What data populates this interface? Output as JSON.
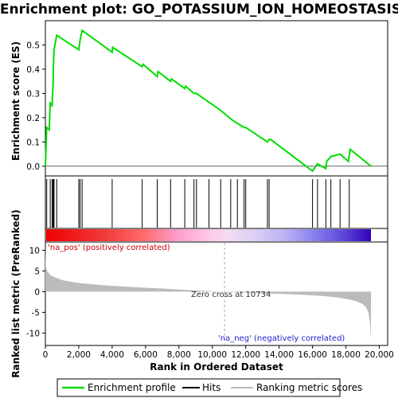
{
  "title": "Enrichment plot: GO_POTASSIUM_ION_HOMEOSTASIS",
  "colors": {
    "profile": "#00dd00",
    "hits": "#000000",
    "metric": "#bbbbbb",
    "pos_label": "#cc0000",
    "neg_label": "#2222cc",
    "zero_line": "#aaaaaa"
  },
  "chart_data": [
    {
      "type": "line",
      "name": "enrichment-profile",
      "ylabel": "Enrichment score (ES)",
      "xlim": [
        0,
        20500
      ],
      "ylim": [
        -0.04,
        0.6
      ],
      "yticks": [
        0.0,
        0.1,
        0.2,
        0.3,
        0.4,
        0.5
      ],
      "grid": false,
      "x": [
        0,
        80,
        230,
        290,
        400,
        460,
        480,
        520,
        680,
        2000,
        2080,
        2200,
        4000,
        4030,
        5800,
        5850,
        6700,
        6750,
        7500,
        7550,
        8350,
        8400,
        8900,
        8950,
        9050,
        10500,
        11200,
        11900,
        12000,
        13300,
        13400,
        13500,
        16000,
        16100,
        16300,
        16800,
        16850,
        17100,
        17650,
        18150,
        18250,
        19500
      ],
      "y": [
        0.0,
        0.16,
        0.15,
        0.26,
        0.25,
        0.33,
        0.41,
        0.48,
        0.54,
        0.48,
        0.52,
        0.56,
        0.47,
        0.49,
        0.41,
        0.42,
        0.37,
        0.39,
        0.35,
        0.36,
        0.32,
        0.33,
        0.3,
        0.3,
        0.3,
        0.23,
        0.19,
        0.16,
        0.16,
        0.1,
        0.11,
        0.11,
        -0.02,
        -0.01,
        0.01,
        -0.01,
        0.02,
        0.04,
        0.05,
        0.02,
        0.07,
        0.0
      ]
    },
    {
      "type": "scatter",
      "name": "hits",
      "x": [
        80,
        290,
        400,
        460,
        480,
        520,
        680,
        2000,
        2080,
        2200,
        4000,
        5800,
        6700,
        7500,
        8350,
        8900,
        9050,
        9800,
        10500,
        11100,
        11500,
        11900,
        12000,
        13300,
        13400,
        16000,
        16300,
        16800,
        17100,
        17650,
        18200
      ]
    },
    {
      "type": "area",
      "name": "ranking-metric-scores",
      "xlabel": "Rank in Ordered Dataset",
      "ylabel": "Ranked list metric (PreRanked)",
      "xlim": [
        0,
        20500
      ],
      "ylim": [
        -13,
        12
      ],
      "xticks": [
        0,
        2000,
        4000,
        6000,
        8000,
        10000,
        12000,
        14000,
        16000,
        18000,
        20000
      ],
      "xtick_labels": [
        "0",
        "2,000",
        "4,000",
        "6,000",
        "8,000",
        "10,000",
        "12,000",
        "14,000",
        "16,000",
        "18,000",
        "20,000"
      ],
      "yticks": [
        10,
        5,
        0,
        -5,
        -10
      ],
      "x": [
        0,
        30,
        100,
        300,
        600,
        1000,
        1500,
        2000,
        3000,
        4000,
        5000,
        6000,
        7000,
        8000,
        9000,
        10000,
        10734,
        11500,
        12500,
        13500,
        14500,
        15500,
        16500,
        17500,
        18200,
        18700,
        19000,
        19200,
        19350,
        19450,
        19500
      ],
      "y": [
        11,
        6,
        5,
        4,
        3.4,
        2.8,
        2.4,
        2.1,
        1.7,
        1.4,
        1.15,
        0.95,
        0.75,
        0.5,
        0.3,
        0.12,
        0,
        -0.15,
        -0.3,
        -0.45,
        -0.6,
        -0.8,
        -1.0,
        -1.4,
        -1.9,
        -2.4,
        -3.0,
        -3.8,
        -5.0,
        -8.0,
        -12
      ],
      "annotations": {
        "pos": "'na_pos' (positively correlated)",
        "neg": "'na_neg' (negatively correlated)",
        "zero": "Zero cross at 10734"
      },
      "zero_cross": 10734
    }
  ],
  "legend": {
    "position": "bottom",
    "items": [
      {
        "label": "Enrichment profile",
        "color": "#00dd00"
      },
      {
        "label": "Hits",
        "color": "#000000"
      },
      {
        "label": "Ranking metric scores",
        "color": "#bbbbbb"
      }
    ]
  }
}
